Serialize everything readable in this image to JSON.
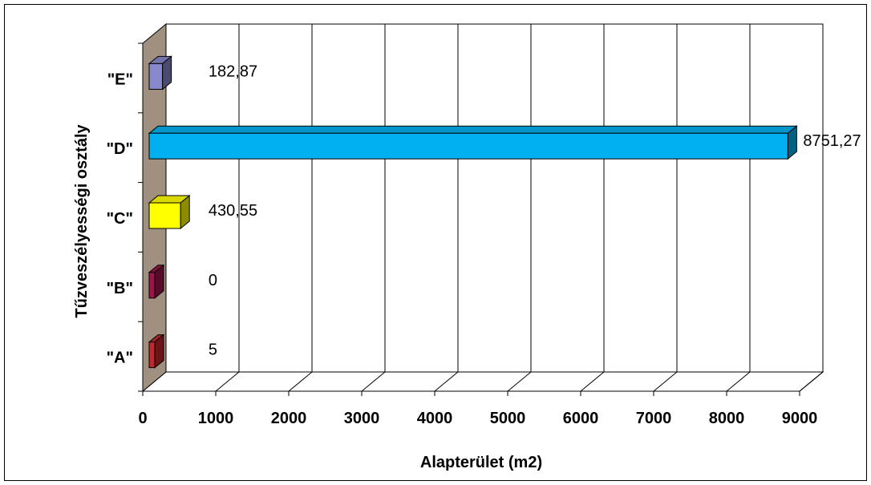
{
  "chart_data": {
    "type": "bar",
    "orientation": "horizontal",
    "style": "3d",
    "categories": [
      "\"A\"",
      "\"B\"",
      "\"C\"",
      "\"D\"",
      "\"E\""
    ],
    "values": [
      5,
      0,
      430.55,
      8751.27,
      182.87
    ],
    "data_labels": [
      "5",
      "0",
      "430,55",
      "8751,27",
      "182,87"
    ],
    "colors": [
      "#c0282c",
      "#a0144a",
      "#ffff00",
      "#00b0f0",
      "#8888cc"
    ],
    "xlabel": "Alapterület (m2)",
    "ylabel": "Tűzveszélyességi osztály",
    "xlim": [
      0,
      9000
    ],
    "xticks": [
      0,
      1000,
      2000,
      3000,
      4000,
      5000,
      6000,
      7000,
      8000,
      9000
    ],
    "xtick_labels": [
      "0",
      "1000",
      "2000",
      "3000",
      "4000",
      "5000",
      "6000",
      "7000",
      "8000",
      "9000"
    ],
    "grid": true,
    "legend": "none"
  }
}
